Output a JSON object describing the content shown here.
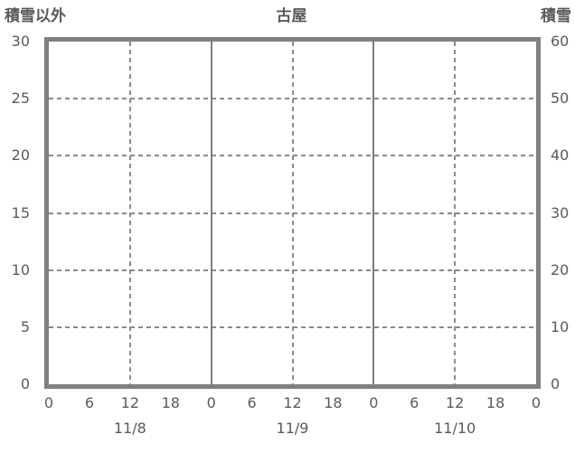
{
  "chart_data": {
    "type": "line",
    "title": "古屋",
    "series": [],
    "left_axis": {
      "label": "積雪以外",
      "min": 0,
      "max": 30,
      "ticks": [
        30,
        25,
        20,
        15,
        10,
        5,
        0
      ]
    },
    "right_axis": {
      "label": "積雪",
      "min": 0,
      "max": 60,
      "ticks": [
        60,
        50,
        40,
        30,
        20,
        10,
        0
      ]
    },
    "x_axis": {
      "total_hours": 72,
      "hour_tick_interval": 6,
      "hour_ticks": [
        "0",
        "6",
        "12",
        "18",
        "0",
        "6",
        "12",
        "18",
        "0",
        "6",
        "12",
        "18",
        "0"
      ],
      "dates": [
        "11/8",
        "11/9",
        "11/10"
      ],
      "solid_gridline_hours": [
        24,
        48
      ],
      "dashed_gridline_hours": [
        12,
        36,
        60
      ]
    },
    "grid": {
      "horizontal": "dashed",
      "vertical_midday": "dashed",
      "vertical_day_boundary": "solid"
    },
    "colors": {
      "plot_border": "#808080",
      "grid_dashed": "#8a8a8a",
      "grid_solid": "#7f7f7f",
      "text": "#595959",
      "background": "#ffffff"
    }
  }
}
